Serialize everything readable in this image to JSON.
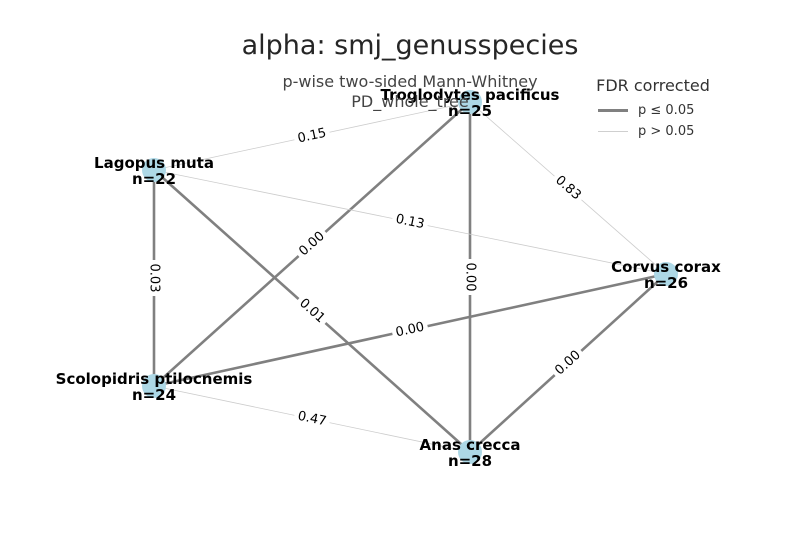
{
  "title": "alpha: smj_genusspecies",
  "subtitle_line1": "p-wise two-sided Mann-Whitney",
  "subtitle_line2": "PD_whole_tree",
  "legend": {
    "title": "FDR corrected",
    "sig_label": "p ≤ 0.05",
    "nonsig_label": "p > 0.05"
  },
  "colors": {
    "node": "#add8e6",
    "sig_edge": "#808080",
    "nonsig_edge": "#cccccc",
    "text": "#000000"
  },
  "nodes": [
    {
      "id": "troglodytes",
      "name": "Troglodytes pacificus",
      "n": "n=25"
    },
    {
      "id": "lagopus",
      "name": "Lagopus muta",
      "n": "n=22"
    },
    {
      "id": "corvus",
      "name": "Corvus corax",
      "n": "n=26"
    },
    {
      "id": "psiloc",
      "name": "Scolopidris ptilocnemis",
      "n": "n=24"
    },
    {
      "id": "anas",
      "name": "Anas crecca",
      "n": "n=28"
    }
  ],
  "edges": [
    {
      "source": "troglodytes",
      "target": "lagopus",
      "label": "0.15",
      "significant": false
    },
    {
      "source": "troglodytes",
      "target": "corvus",
      "label": "0.83",
      "significant": false
    },
    {
      "source": "troglodytes",
      "target": "psiloc",
      "label": "0.00",
      "significant": true
    },
    {
      "source": "troglodytes",
      "target": "anas",
      "label": "0.00",
      "significant": true
    },
    {
      "source": "lagopus",
      "target": "corvus",
      "label": "0.13",
      "significant": false
    },
    {
      "source": "lagopus",
      "target": "psiloc",
      "label": "0.03",
      "significant": true
    },
    {
      "source": "lagopus",
      "target": "anas",
      "label": "0.01",
      "significant": true
    },
    {
      "source": "corvus",
      "target": "psiloc",
      "label": "0.00",
      "significant": true
    },
    {
      "source": "corvus",
      "target": "anas",
      "label": "0.00",
      "significant": true
    },
    {
      "source": "psiloc",
      "target": "anas",
      "label": "0.47",
      "significant": false
    }
  ]
}
